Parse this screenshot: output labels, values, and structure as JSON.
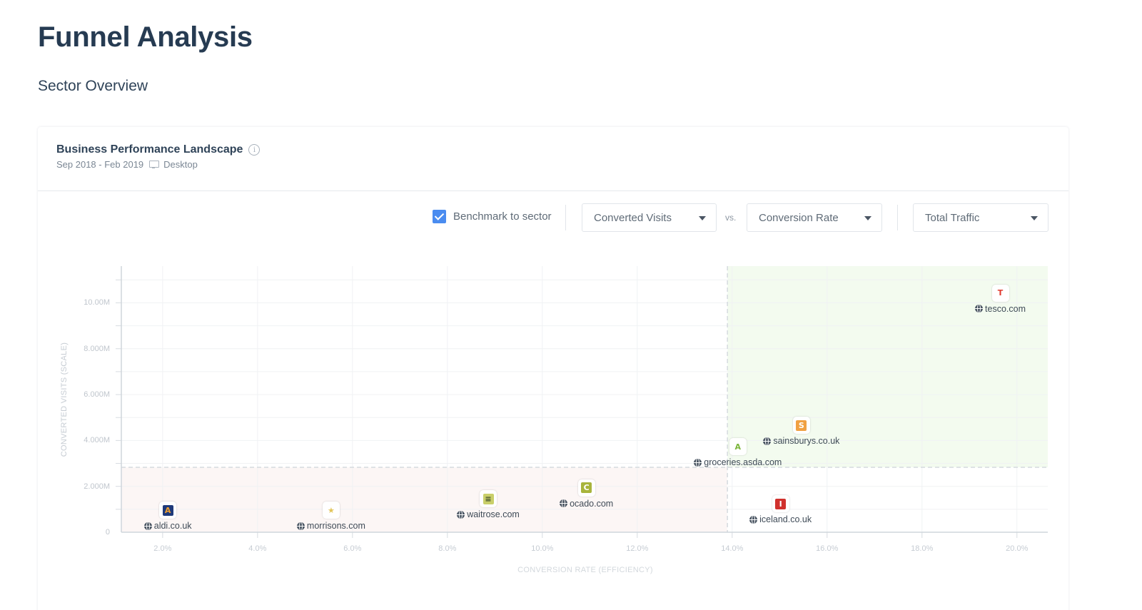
{
  "page": {
    "title": "Funnel Analysis",
    "subtitle": "Sector Overview"
  },
  "card": {
    "title": "Business Performance Landscape",
    "info_icon": "info-icon",
    "date_range": "Sep 2018 - Feb 2019",
    "device_icon": "monitor-icon",
    "device": "Desktop"
  },
  "controls": {
    "benchmark_checkbox": {
      "label": "Benchmark to sector",
      "checked": true,
      "color": "#4a8cf0"
    },
    "y_metric_dropdown": {
      "selected": "Converted Visits"
    },
    "vs_label": "vs.",
    "x_metric_dropdown": {
      "selected": "Conversion Rate"
    },
    "size_metric_dropdown": {
      "selected": "Total Traffic"
    }
  },
  "chart_data": {
    "type": "scatter",
    "title": "Business Performance Landscape",
    "xlabel": "CONVERSION RATE (EFFICIENCY)",
    "ylabel": "CONVERTED VISITS (SCALE)",
    "x_ticks": [
      "2.0%",
      "4.0%",
      "6.0%",
      "8.0%",
      "10.0%",
      "12.0%",
      "14.0%",
      "16.0%",
      "18.0%",
      "20.0%"
    ],
    "y_ticks": [
      "0",
      "2.000M",
      "4.000M",
      "6.000M",
      "8.000M",
      "10.00M"
    ],
    "xlim": [
      1.13,
      20.65
    ],
    "ylim": [
      0,
      11.6
    ],
    "x_unit": "%",
    "y_unit": "M",
    "grid": true,
    "benchmark": {
      "x": 13.9,
      "y": 2.83
    },
    "quadrant_colors": {
      "top_right": "#f3fbef",
      "bottom_left": "#fcf6f5"
    },
    "points": [
      {
        "name": "tesco.com",
        "x": 19.65,
        "y": 10.43,
        "logo_letter": "T",
        "logo_bg": "#ffffff",
        "logo_fg": "#e03a2f"
      },
      {
        "name": "sainsburys.co.uk",
        "x": 15.46,
        "y": 4.66,
        "logo_letter": "S",
        "logo_bg": "#f0a042",
        "logo_fg": "#ffffff"
      },
      {
        "name": "groceries.asda.com",
        "x": 14.12,
        "y": 3.73,
        "logo_letter": "A",
        "logo_bg": "#ffffff",
        "logo_fg": "#7bb53a"
      },
      {
        "name": "iceland.co.uk",
        "x": 15.02,
        "y": 1.24,
        "logo_letter": "I",
        "logo_bg": "#d0312d",
        "logo_fg": "#ffffff"
      },
      {
        "name": "ocado.com",
        "x": 10.93,
        "y": 1.93,
        "logo_letter": "C",
        "logo_bg": "#a8b43c",
        "logo_fg": "#ffffff"
      },
      {
        "name": "waitrose.com",
        "x": 8.86,
        "y": 1.46,
        "logo_letter": "≡",
        "logo_bg": "#c9cf6a",
        "logo_fg": "#3a4a2a"
      },
      {
        "name": "morrisons.com",
        "x": 5.55,
        "y": 0.96,
        "logo_letter": "★",
        "logo_bg": "#ffffff",
        "logo_fg": "#e2c55a"
      },
      {
        "name": "aldi.co.uk",
        "x": 2.11,
        "y": 0.96,
        "logo_letter": "A",
        "logo_bg": "#1f3a7a",
        "logo_fg": "#f0a030"
      }
    ]
  }
}
